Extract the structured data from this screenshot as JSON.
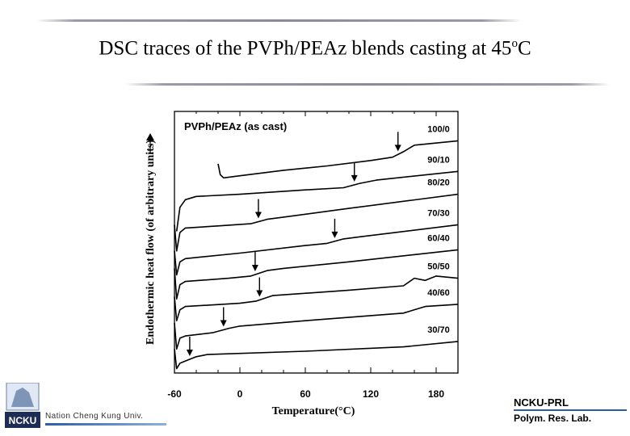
{
  "slide": {
    "title_main": "DSC traces of the PVPh/PEAz blends casting at 45",
    "title_sup": "o",
    "title_end": "C"
  },
  "footer": {
    "logo_text": "NCKU",
    "univ_text": "Nation Cheng Kung Univ.",
    "lab_title": "NCKU-PRL",
    "lab_subtitle": "Polym. Res. Lab."
  },
  "chart_data": {
    "type": "line",
    "title": "PVPh/PEAz (as cast)",
    "xlabel": "Temperature(°C)",
    "ylabel": "Endothermic heat flow (of arbitrary units)",
    "xlim": [
      -60,
      200
    ],
    "x_ticks": [
      -60,
      0,
      60,
      120,
      180
    ],
    "y_ticks": false,
    "grid": false,
    "series": [
      {
        "name": "100/0",
        "tg": 145,
        "points": [
          [
            -20,
            -3.4
          ],
          [
            -18,
            -3.9
          ],
          [
            -15,
            -4.05
          ],
          [
            0,
            -3.95
          ],
          [
            40,
            -3.7
          ],
          [
            80,
            -3.5
          ],
          [
            120,
            -3.25
          ],
          [
            140,
            -3.1
          ],
          [
            150,
            -2.85
          ],
          [
            160,
            -2.55
          ],
          [
            200,
            -2.35
          ]
        ]
      },
      {
        "name": "90/10",
        "tg": 105,
        "points": [
          [
            -58,
            -6.5
          ],
          [
            -55,
            -5.4
          ],
          [
            -50,
            -5.05
          ],
          [
            -40,
            -4.9
          ],
          [
            0,
            -4.8
          ],
          [
            60,
            -4.6
          ],
          [
            95,
            -4.5
          ],
          [
            110,
            -4.3
          ],
          [
            125,
            -4.15
          ],
          [
            200,
            -3.75
          ]
        ]
      },
      {
        "name": "80/20",
        "tg": 17,
        "points": [
          [
            -60,
            -6.2
          ],
          [
            -58,
            -7.4
          ],
          [
            -55,
            -6.55
          ],
          [
            -50,
            -6.35
          ],
          [
            -20,
            -6.25
          ],
          [
            10,
            -6.15
          ],
          [
            25,
            -5.95
          ],
          [
            40,
            -5.85
          ],
          [
            100,
            -5.45
          ],
          [
            200,
            -4.8
          ]
        ]
      },
      {
        "name": "70/30",
        "tg": 87,
        "points": [
          [
            -60,
            -7.4
          ],
          [
            -58,
            -8.5
          ],
          [
            -55,
            -7.9
          ],
          [
            -50,
            -7.75
          ],
          [
            0,
            -7.5
          ],
          [
            60,
            -7.15
          ],
          [
            80,
            -7.05
          ],
          [
            95,
            -6.85
          ],
          [
            110,
            -6.75
          ],
          [
            200,
            -6.2
          ]
        ]
      },
      {
        "name": "60/40",
        "tg": 14,
        "points": [
          [
            -60,
            -8.2
          ],
          [
            -58,
            -9.6
          ],
          [
            -55,
            -8.95
          ],
          [
            -50,
            -8.8
          ],
          [
            -10,
            -8.65
          ],
          [
            10,
            -8.55
          ],
          [
            25,
            -8.3
          ],
          [
            40,
            -8.2
          ],
          [
            100,
            -7.9
          ],
          [
            200,
            -7.35
          ]
        ]
      },
      {
        "name": "50/50",
        "tg": 18,
        "points": [
          [
            -60,
            -9.5
          ],
          [
            -58,
            -10.6
          ],
          [
            -55,
            -10.1
          ],
          [
            -50,
            -9.95
          ],
          [
            0,
            -9.8
          ],
          [
            15,
            -9.7
          ],
          [
            30,
            -9.45
          ],
          [
            100,
            -9.2
          ],
          [
            150,
            -9.0
          ],
          [
            160,
            -8.65
          ],
          [
            170,
            -8.75
          ],
          [
            180,
            -8.55
          ],
          [
            200,
            -8.65
          ]
        ]
      },
      {
        "name": "40/60",
        "tg": -15,
        "points": [
          [
            -60,
            -10.7
          ],
          [
            -58,
            -11.9
          ],
          [
            -55,
            -11.4
          ],
          [
            -50,
            -11.3
          ],
          [
            -25,
            -11.15
          ],
          [
            -10,
            -10.95
          ],
          [
            0,
            -10.85
          ],
          [
            60,
            -10.6
          ],
          [
            150,
            -10.25
          ],
          [
            170,
            -9.95
          ],
          [
            200,
            -9.85
          ]
        ]
      },
      {
        "name": "30/70",
        "tg": -46,
        "points": [
          [
            -60,
            -11.9
          ],
          [
            -58,
            -12.8
          ],
          [
            -55,
            -12.55
          ],
          [
            -50,
            -12.45
          ],
          [
            -40,
            -12.25
          ],
          [
            -30,
            -12.15
          ],
          [
            60,
            -12.0
          ],
          [
            150,
            -11.8
          ],
          [
            200,
            -11.55
          ]
        ]
      }
    ]
  }
}
